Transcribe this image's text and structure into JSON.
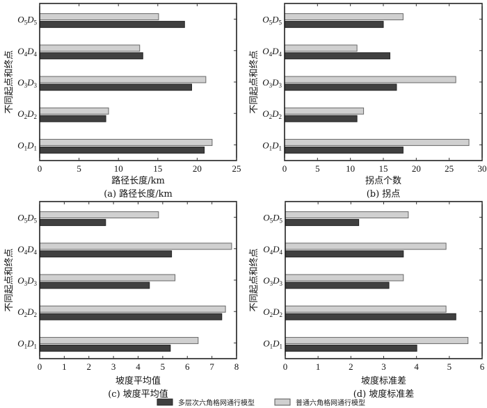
{
  "legend": {
    "items": [
      {
        "name": "多层次六角格网通行模型",
        "color": "#404040"
      },
      {
        "name": "普通六角格网通行模型",
        "color": "#d0d0d0"
      }
    ]
  },
  "chart_data": [
    {
      "id": "a",
      "type": "bar",
      "orientation": "horizontal",
      "title": "(a) 路径长度/km",
      "xlabel": "路径长度/km",
      "ylabel": "不同起点和终点",
      "categories": [
        {
          "o": "O",
          "os": "1",
          "d": "D",
          "ds": "1"
        },
        {
          "o": "O",
          "os": "2",
          "d": "D",
          "ds": "2"
        },
        {
          "o": "O",
          "os": "3",
          "d": "D",
          "ds": "3"
        },
        {
          "o": "O",
          "os": "4",
          "d": "D",
          "ds": "4"
        },
        {
          "o": "O",
          "os": "5",
          "d": "D",
          "ds": "5"
        }
      ],
      "xlim": [
        0,
        25
      ],
      "xticks": [
        0,
        5,
        10,
        15,
        20,
        25
      ],
      "grid": false,
      "series": [
        {
          "name": "多层次六角格网通行模型",
          "values": [
            20.9,
            8.4,
            19.3,
            13.1,
            18.4
          ]
        },
        {
          "name": "普通六角格网通行模型",
          "values": [
            21.9,
            8.75,
            21.1,
            12.7,
            15.1
          ]
        }
      ]
    },
    {
      "id": "b",
      "type": "bar",
      "orientation": "horizontal",
      "title": "(b) 拐点",
      "xlabel": "拐点个数",
      "ylabel": "不同起点和终点",
      "categories": [
        {
          "o": "O",
          "os": "1",
          "d": "D",
          "ds": "1"
        },
        {
          "o": "O",
          "os": "2",
          "d": "D",
          "ds": "2"
        },
        {
          "o": "O",
          "os": "3",
          "d": "D",
          "ds": "3"
        },
        {
          "o": "O",
          "os": "4",
          "d": "D",
          "ds": "4"
        },
        {
          "o": "O",
          "os": "5",
          "d": "D",
          "ds": "5"
        }
      ],
      "xlim": [
        0,
        30
      ],
      "xticks": [
        0,
        5,
        10,
        15,
        20,
        25,
        30
      ],
      "grid": false,
      "series": [
        {
          "name": "多层次六角格网通行模型",
          "values": [
            18,
            11,
            17,
            16,
            15
          ]
        },
        {
          "name": "普通六角格网通行模型",
          "values": [
            28,
            12,
            26,
            11,
            18
          ]
        }
      ]
    },
    {
      "id": "c",
      "type": "bar",
      "orientation": "horizontal",
      "title": "(c) 坡度平均值",
      "xlabel": "坡度平均值",
      "ylabel": "不同起点和终点",
      "categories": [
        {
          "o": "O",
          "os": "1",
          "d": "D",
          "ds": "1"
        },
        {
          "o": "O",
          "os": "2",
          "d": "D",
          "ds": "2"
        },
        {
          "o": "O",
          "os": "3",
          "d": "D",
          "ds": "3"
        },
        {
          "o": "O",
          "os": "4",
          "d": "D",
          "ds": "4"
        },
        {
          "o": "O",
          "os": "5",
          "d": "D",
          "ds": "5"
        }
      ],
      "xlim": [
        0,
        8
      ],
      "xticks": [
        0,
        1,
        2,
        3,
        4,
        5,
        6,
        7,
        8
      ],
      "grid": false,
      "series": [
        {
          "name": "多层次六角格网通行模型",
          "values": [
            5.31,
            7.4,
            4.46,
            5.36,
            2.68
          ]
        },
        {
          "name": "普通六角格网通行模型",
          "values": [
            6.44,
            7.55,
            5.5,
            7.8,
            4.83
          ]
        }
      ]
    },
    {
      "id": "d",
      "type": "bar",
      "orientation": "horizontal",
      "title": "(d) 坡度标准差",
      "xlabel": "坡度标准差",
      "ylabel": "不同起点和终点",
      "categories": [
        {
          "o": "O",
          "os": "1",
          "d": "D",
          "ds": "1"
        },
        {
          "o": "O",
          "os": "2",
          "d": "D",
          "ds": "2"
        },
        {
          "o": "O",
          "os": "3",
          "d": "D",
          "ds": "3"
        },
        {
          "o": "O",
          "os": "4",
          "d": "D",
          "ds": "4"
        },
        {
          "o": "O",
          "os": "5",
          "d": "D",
          "ds": "5"
        }
      ],
      "xlim": [
        0,
        6
      ],
      "xticks": [
        0,
        1,
        2,
        3,
        4,
        5,
        6
      ],
      "grid": false,
      "series": [
        {
          "name": "多层次六角格网通行模型",
          "values": [
            4.01,
            5.2,
            3.16,
            3.6,
            2.24
          ]
        },
        {
          "name": "普通六角格网通行模型",
          "values": [
            5.57,
            4.9,
            3.6,
            4.9,
            3.75
          ]
        }
      ]
    }
  ]
}
